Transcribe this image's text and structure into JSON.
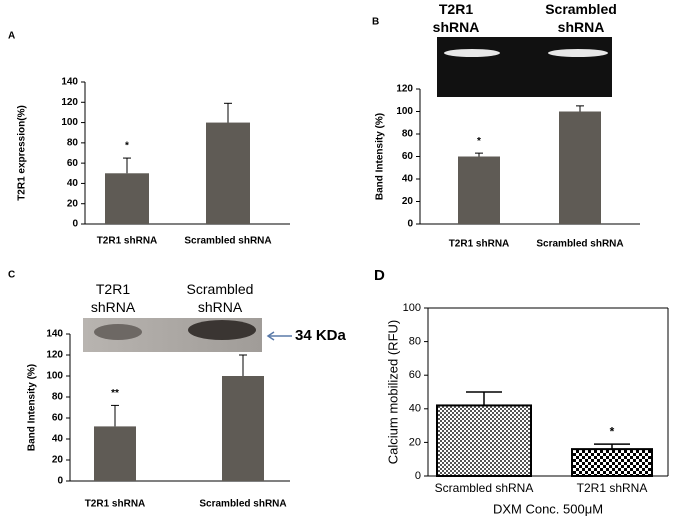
{
  "chart_data": [
    {
      "type": "bar",
      "panel_label": "A",
      "y_label": "T2R1 expression(%)",
      "categories": [
        "T2R1 shRNA",
        "Scrambled shRNA"
      ],
      "values": [
        50,
        100
      ],
      "errors": [
        15,
        19
      ],
      "annotations": [
        "*",
        null
      ],
      "color": "#5f5b55",
      "ylim": [
        0,
        140
      ],
      "yticks": [
        0,
        20,
        40,
        60,
        80,
        100,
        120,
        140
      ]
    },
    {
      "type": "bar",
      "panel_label": "B",
      "y_label": "Band Intensity (%)",
      "image_labels": [
        "T2R1 shRNA",
        "Scrambled shRNA"
      ],
      "categories": [
        "T2R1 shRNA",
        "Scrambled shRNA"
      ],
      "values": [
        60,
        100
      ],
      "errors": [
        3,
        5
      ],
      "annotations": [
        "*",
        null
      ],
      "color": "#5f5b55",
      "ylim": [
        0,
        120
      ],
      "yticks": [
        0,
        20,
        40,
        60,
        80,
        100,
        120
      ]
    },
    {
      "type": "bar",
      "panel_label": "C",
      "y_label": "Band Intensity (%)",
      "image_labels": [
        "T2R1 shRNA",
        "Scrambled shRNA"
      ],
      "marker_label": "34 KDa",
      "categories": [
        "T2R1 shRNA",
        "Scrambled shRNA"
      ],
      "values": [
        52,
        100
      ],
      "errors": [
        20,
        20
      ],
      "annotations": [
        "**",
        null
      ],
      "color": "#5f5b55",
      "ylim": [
        0,
        140
      ],
      "yticks": [
        0,
        20,
        40,
        60,
        80,
        100,
        120,
        140
      ]
    },
    {
      "type": "bar",
      "panel_label": "D",
      "y_label": "Calcium mobilized (RFU)",
      "x_label": "DXM Conc. 500μM",
      "categories": [
        "Scrambled shRNA",
        "T2R1 shRNA"
      ],
      "values": [
        42,
        16
      ],
      "errors": [
        8,
        3
      ],
      "annotations": [
        null,
        "*"
      ],
      "color": "#000000",
      "ylim": [
        0,
        100
      ],
      "yticks": [
        0,
        20,
        40,
        60,
        80,
        100
      ]
    }
  ]
}
